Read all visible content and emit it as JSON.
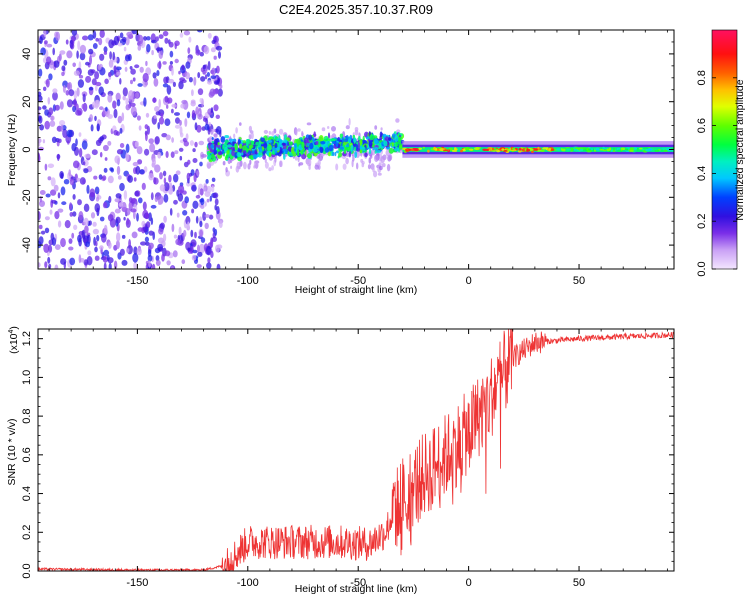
{
  "chart_data": [
    {
      "type": "heatmap",
      "title": "C2E4.2025.357.10.37.R09",
      "xlabel": "Height of straight line (km)",
      "ylabel": "Frequency (Hz)",
      "xlim": [
        -195,
        93
      ],
      "ylim": [
        -50,
        50
      ],
      "xticks": [
        -150,
        -100,
        -50,
        0,
        50
      ],
      "yticks": [
        -40,
        -20,
        0,
        20,
        40
      ],
      "colorbar": {
        "label": "Normalized spectral amplitude",
        "range": [
          0.0,
          1.0
        ],
        "ticks": [
          0.0,
          0.2,
          0.4,
          0.6,
          0.8
        ]
      },
      "regions": [
        {
          "x_from": -195,
          "x_to": -118,
          "description_value": "noise",
          "freq_spread_hz": 50,
          "amplitude": 0.15
        },
        {
          "x_from": -118,
          "x_to": -30,
          "description_value": "signal",
          "freq_spread_hz": 8,
          "amplitude": 0.35
        },
        {
          "x_from": -30,
          "x_to": 93,
          "description_value": "signal",
          "freq_spread_hz": 3,
          "amplitude": 0.9
        }
      ]
    },
    {
      "type": "line",
      "xlabel": "Height of straight line (km)",
      "ylabel": "SNR (10 * v/v)",
      "y_scale_label": "(x10",
      "y_scale_exponent": "4",
      "xlim": [
        -195,
        93
      ],
      "ylim": [
        0,
        1.25
      ],
      "xticks": [
        -150,
        -100,
        -50,
        0,
        50
      ],
      "yticks": [
        0.0,
        0.2,
        0.4,
        0.6,
        0.8,
        1.0,
        1.2
      ],
      "series": [
        {
          "name": "SNR",
          "color": "#ee3333",
          "x": [
            -195,
            -150,
            -120,
            -110,
            -100,
            -80,
            -60,
            -45,
            -38,
            -30,
            -20,
            -10,
            0,
            10,
            20,
            30,
            50,
            70,
            93
          ],
          "values": [
            0.01,
            0.005,
            0.005,
            0.03,
            0.15,
            0.15,
            0.15,
            0.14,
            0.2,
            0.38,
            0.5,
            0.6,
            0.72,
            0.9,
            1.1,
            1.18,
            1.2,
            1.21,
            1.22
          ]
        }
      ]
    }
  ]
}
